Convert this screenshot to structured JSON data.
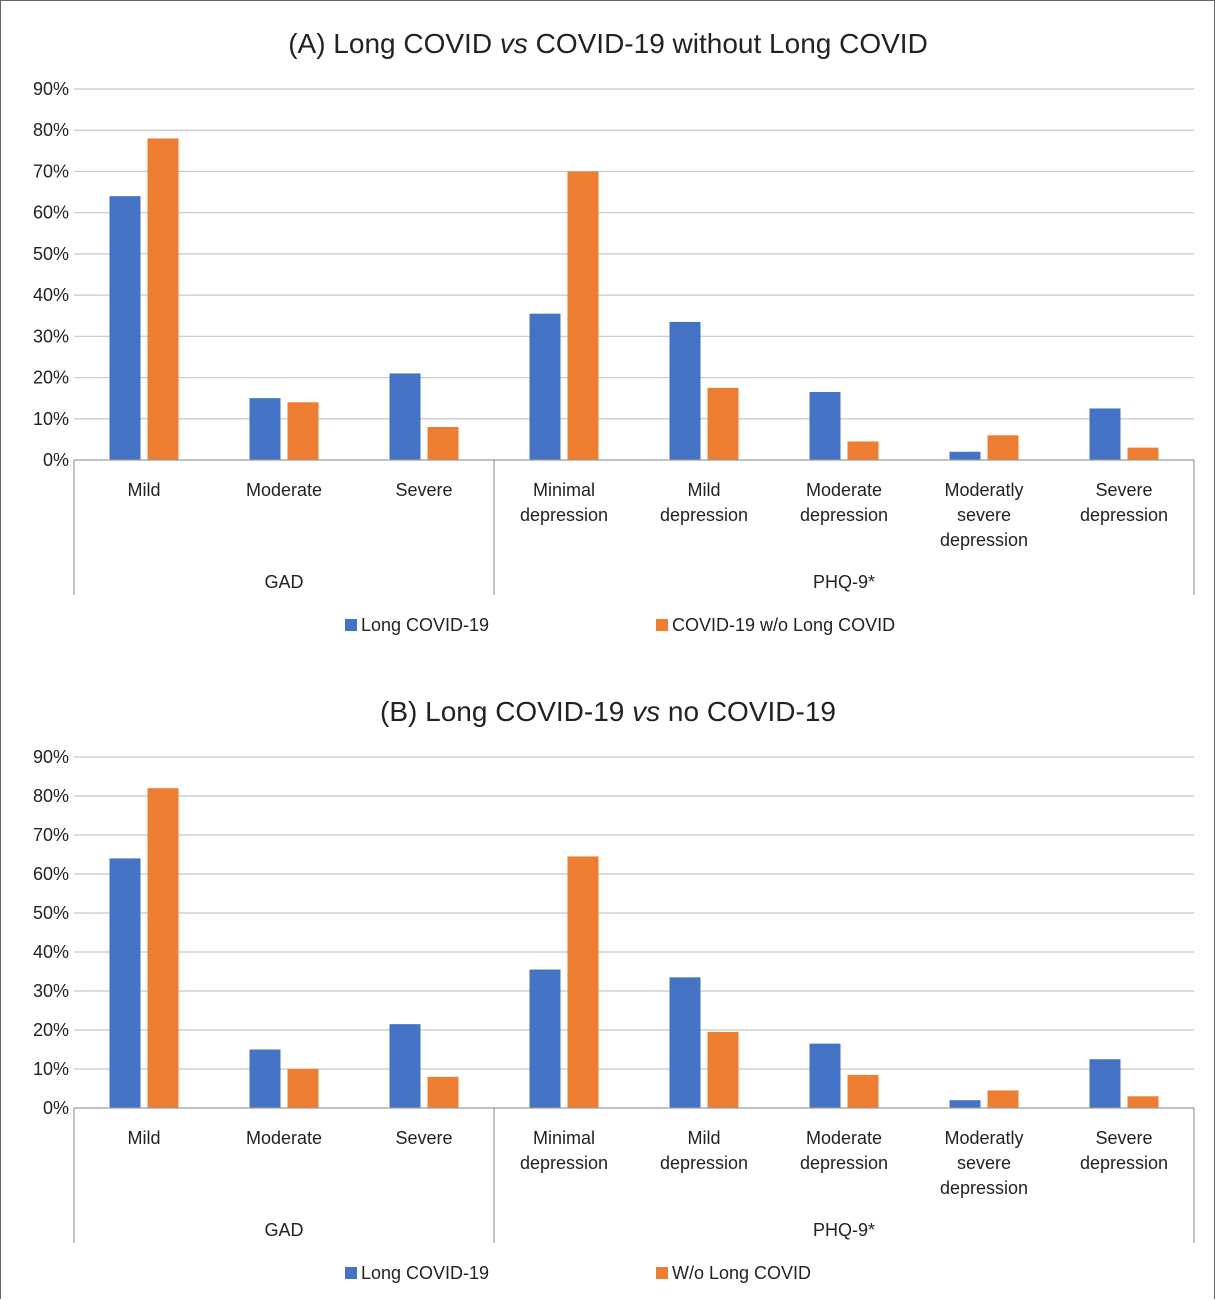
{
  "colors": {
    "series1": "#4472c4",
    "series2": "#ed7d31"
  },
  "chart_data": [
    {
      "type": "bar",
      "title_prefix": "(A) Long COVID ",
      "title_italic": "vs",
      "title_suffix": " COVID-19 without Long COVID",
      "categories": [
        [
          "Mild"
        ],
        [
          "Moderate"
        ],
        [
          "Severe"
        ],
        [
          "Minimal",
          "depression"
        ],
        [
          "Mild",
          "depression"
        ],
        [
          "Moderate",
          "depression"
        ],
        [
          "Moderatly",
          "severe",
          "depression"
        ],
        [
          "Severe",
          "depression"
        ]
      ],
      "groups": [
        {
          "label": "GAD",
          "count": 3
        },
        {
          "label": "PHQ-9*",
          "count": 5
        }
      ],
      "series": [
        {
          "name": "Long COVID-19",
          "values": [
            64,
            15,
            21,
            35.5,
            33.5,
            16.5,
            2,
            12.5
          ]
        },
        {
          "name": "COVID-19 w/o Long COVID",
          "values": [
            78,
            14,
            8,
            70,
            17.5,
            4.5,
            6,
            3
          ]
        }
      ],
      "ylim": [
        0,
        90
      ],
      "yticks": [
        "0%",
        "10%",
        "20%",
        "30%",
        "40%",
        "50%",
        "60%",
        "70%",
        "80%",
        "90%"
      ],
      "grid": true,
      "legend": "bottom"
    },
    {
      "type": "bar",
      "title_prefix": "(B) Long COVID-19 ",
      "title_italic": "vs",
      "title_suffix": " no COVID-19",
      "categories": [
        [
          "Mild"
        ],
        [
          "Moderate"
        ],
        [
          "Severe"
        ],
        [
          "Minimal",
          "depression"
        ],
        [
          "Mild",
          "depression"
        ],
        [
          "Moderate",
          "depression"
        ],
        [
          "Moderatly",
          "severe",
          "depression"
        ],
        [
          "Severe",
          "depression"
        ]
      ],
      "groups": [
        {
          "label": "GAD",
          "count": 3
        },
        {
          "label": "PHQ-9*",
          "count": 5
        }
      ],
      "series": [
        {
          "name": "Long COVID-19",
          "values": [
            64,
            15,
            21.5,
            35.5,
            33.5,
            16.5,
            2,
            12.5
          ]
        },
        {
          "name": "W/o Long COVID",
          "values": [
            82,
            10,
            8,
            64.5,
            19.5,
            8.5,
            4.5,
            3
          ]
        }
      ],
      "ylim": [
        0,
        90
      ],
      "yticks": [
        "0%",
        "10%",
        "20%",
        "30%",
        "40%",
        "50%",
        "60%",
        "70%",
        "80%",
        "90%"
      ],
      "grid": true,
      "legend": "bottom"
    }
  ]
}
